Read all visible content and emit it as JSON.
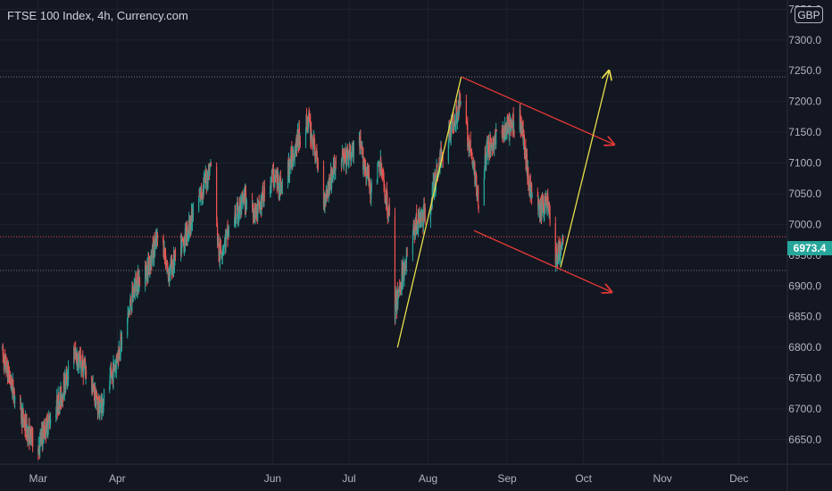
{
  "header": {
    "title": "FTSE 100 Index, 4h, Currency.com"
  },
  "price_axis": {
    "currency": "GBP"
  },
  "last_price": {
    "label": "6973.4",
    "color": "#26a69a"
  },
  "colors": {
    "up": "#26a69a",
    "down": "#ef5350",
    "background": "#131722",
    "trend_red": "#e53935",
    "trend_yellow": "#e9e04b"
  },
  "chart_data": {
    "type": "candlestick",
    "title": "FTSE 100 Index, 4h, Currency.com",
    "ylim": [
      6610,
      7365
    ],
    "y_ticks": [
      6650,
      6700,
      6750,
      6800,
      6850,
      6900,
      6950,
      7000,
      7050,
      7100,
      7150,
      7200,
      7250,
      7300,
      7350
    ],
    "y_tick_labels": [
      "6650.0",
      "6700.0",
      "6750.0",
      "6800.0",
      "6850.0",
      "6900.0",
      "6950.0",
      "7000.0",
      "7050.0",
      "7100.0",
      "7150.0",
      "7200.0",
      "7250.0",
      "7300.0",
      "7350.0"
    ],
    "x_range": [
      "2021-02-14",
      "2021-12-20"
    ],
    "x_ticks": [
      {
        "label": "Mar",
        "date": "2021-03-01"
      },
      {
        "label": "Apr",
        "date": "2021-04-01"
      },
      {
        "label": "Jun",
        "date": "2021-06-01"
      },
      {
        "label": "Jul",
        "date": "2021-07-01"
      },
      {
        "label": "Aug",
        "date": "2021-08-01"
      },
      {
        "label": "Sep",
        "date": "2021-09-01"
      },
      {
        "label": "Oct",
        "date": "2021-10-01"
      },
      {
        "label": "Nov",
        "date": "2021-11-01"
      },
      {
        "label": "Dec",
        "date": "2021-12-01"
      }
    ],
    "price_path": [
      [
        "2021-02-14",
        6800
      ],
      [
        "2021-02-20",
        6720
      ],
      [
        "2021-02-25",
        6660
      ],
      [
        "2021-03-01",
        6640
      ],
      [
        "2021-03-05",
        6680
      ],
      [
        "2021-03-10",
        6720
      ],
      [
        "2021-03-15",
        6790
      ],
      [
        "2021-03-20",
        6760
      ],
      [
        "2021-03-25",
        6700
      ],
      [
        "2021-03-29",
        6740
      ],
      [
        "2021-04-04",
        6830
      ],
      [
        "2021-04-08",
        6900
      ],
      [
        "2021-04-13",
        6930
      ],
      [
        "2021-04-18",
        6990
      ],
      [
        "2021-04-21",
        6920
      ],
      [
        "2021-04-26",
        6960
      ],
      [
        "2021-05-03",
        7040
      ],
      [
        "2021-05-08",
        7100
      ],
      [
        "2021-05-11",
        6950
      ],
      [
        "2021-05-16",
        7000
      ],
      [
        "2021-05-21",
        7040
      ],
      [
        "2021-05-26",
        7020
      ],
      [
        "2021-06-01",
        7080
      ],
      [
        "2021-06-05",
        7060
      ],
      [
        "2021-06-10",
        7130
      ],
      [
        "2021-06-15",
        7170
      ],
      [
        "2021-06-18",
        7110
      ],
      [
        "2021-06-21",
        7040
      ],
      [
        "2021-06-26",
        7100
      ],
      [
        "2021-07-01",
        7110
      ],
      [
        "2021-07-05",
        7130
      ],
      [
        "2021-07-10",
        7050
      ],
      [
        "2021-07-13",
        7100
      ],
      [
        "2021-07-17",
        7010
      ],
      [
        "2021-07-19",
        6860
      ],
      [
        "2021-07-22",
        6920
      ],
      [
        "2021-07-27",
        7000
      ],
      [
        "2021-08-01",
        7020
      ],
      [
        "2021-08-06",
        7110
      ],
      [
        "2021-08-11",
        7170
      ],
      [
        "2021-08-14",
        7200
      ],
      [
        "2021-08-18",
        7110
      ],
      [
        "2021-08-21",
        7040
      ],
      [
        "2021-08-24",
        7120
      ],
      [
        "2021-08-28",
        7140
      ],
      [
        "2021-09-03",
        7160
      ],
      [
        "2021-09-06",
        7180
      ],
      [
        "2021-09-10",
        7060
      ],
      [
        "2021-09-14",
        7020
      ],
      [
        "2021-09-17",
        7040
      ],
      [
        "2021-09-20",
        6940
      ],
      [
        "2021-09-23",
        6973
      ]
    ],
    "horizontal_levels": [
      {
        "value": 7240,
        "style": "dotted",
        "color": "#787b86"
      },
      {
        "value": 6980,
        "style": "dotted",
        "color": "#ef5350"
      },
      {
        "value": 6925,
        "style": "dotted",
        "color": "#787b86"
      }
    ],
    "trend_lines": [
      {
        "color": "#e9e04b",
        "from": [
          "2021-07-20",
          6800
        ],
        "to": [
          "2021-08-14",
          7240
        ],
        "arrow": false
      },
      {
        "color": "#e53935",
        "from": [
          "2021-08-14",
          7240
        ],
        "to": [
          "2021-10-13",
          7130
        ],
        "arrow": true
      },
      {
        "color": "#e53935",
        "from": [
          "2021-08-19",
          6990
        ],
        "to": [
          "2021-10-12",
          6890
        ],
        "arrow": true
      },
      {
        "color": "#e9e04b",
        "from": [
          "2021-09-22",
          6930
        ],
        "to": [
          "2021-10-11",
          7250
        ],
        "arrow": true
      }
    ]
  }
}
